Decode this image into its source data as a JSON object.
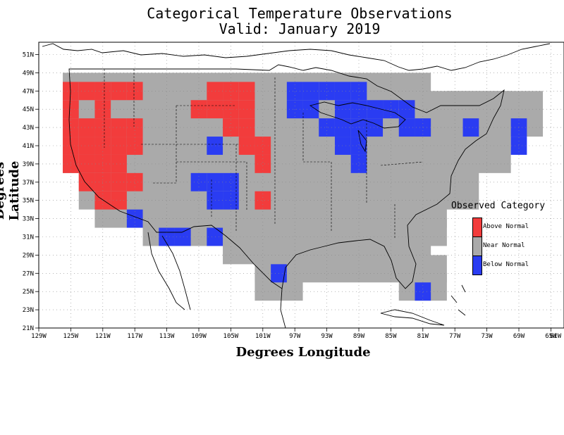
{
  "title": "Categorical Temperature Observations",
  "subtitle": "Valid: January 2019",
  "axes": {
    "ylabel": "Degrees Latitude",
    "xlabel": "Degrees Longitude",
    "lat_ticks": [
      "51N",
      "49N",
      "47N",
      "45N",
      "43N",
      "41N",
      "39N",
      "37N",
      "35N",
      "33N",
      "31N",
      "29N",
      "27N",
      "25N",
      "23N",
      "21N"
    ],
    "lon_ticks": [
      "129W",
      "125W",
      "121W",
      "117W",
      "113W",
      "109W",
      "105W",
      "101W",
      "97W",
      "93W",
      "89W",
      "85W",
      "81W",
      "77W",
      "73W",
      "69W",
      "65W",
      "61W"
    ]
  },
  "legend": {
    "title": "Observed Category",
    "items": [
      {
        "label": "Above Normal",
        "color": "#f23c3c"
      },
      {
        "label": "Near Normal",
        "color": "#aaaaaa"
      },
      {
        "label": "Below Normal",
        "color": "#2a3cf2"
      }
    ]
  },
  "chart_data": {
    "type": "heatmap",
    "title": "Categorical Temperature Observations",
    "subtitle": "Valid: January 2019",
    "xlabel": "Degrees Longitude",
    "ylabel": "Degrees Latitude",
    "xlim": [
      -129,
      -61
    ],
    "ylim": [
      21,
      52
    ],
    "grid": true,
    "legend_position": "right",
    "categories": [
      "Above Normal",
      "Near Normal",
      "Below Normal"
    ],
    "cell_size_deg": 2,
    "cells": {
      "above": [
        [
          -125,
          47
        ],
        [
          -123,
          47
        ],
        [
          -121,
          47
        ],
        [
          -119,
          47
        ],
        [
          -117,
          47
        ],
        [
          -107,
          47
        ],
        [
          -105,
          47
        ],
        [
          -103,
          47
        ],
        [
          -125,
          45
        ],
        [
          -121,
          45
        ],
        [
          -109,
          45
        ],
        [
          -107,
          45
        ],
        [
          -105,
          45
        ],
        [
          -103,
          45
        ],
        [
          -125,
          43
        ],
        [
          -123,
          43
        ],
        [
          -121,
          43
        ],
        [
          -119,
          43
        ],
        [
          -117,
          43
        ],
        [
          -105,
          43
        ],
        [
          -103,
          43
        ],
        [
          -125,
          41
        ],
        [
          -123,
          41
        ],
        [
          -121,
          41
        ],
        [
          -119,
          41
        ],
        [
          -117,
          41
        ],
        [
          -103,
          41
        ],
        [
          -101,
          41
        ],
        [
          -125,
          39
        ],
        [
          -123,
          39
        ],
        [
          -121,
          39
        ],
        [
          -119,
          39
        ],
        [
          -101,
          39
        ],
        [
          -123,
          37
        ],
        [
          -121,
          37
        ],
        [
          -119,
          37
        ],
        [
          -117,
          37
        ],
        [
          -121,
          35
        ],
        [
          -119,
          35
        ],
        [
          -101,
          35
        ]
      ],
      "below": [
        [
          -97,
          47
        ],
        [
          -95,
          47
        ],
        [
          -93,
          47
        ],
        [
          -91,
          47
        ],
        [
          -89,
          47
        ],
        [
          -97,
          45
        ],
        [
          -95,
          45
        ],
        [
          -91,
          45
        ],
        [
          -89,
          45
        ],
        [
          -87,
          45
        ],
        [
          -85,
          45
        ],
        [
          -83,
          45
        ],
        [
          -93,
          43
        ],
        [
          -91,
          43
        ],
        [
          -89,
          43
        ],
        [
          -87,
          43
        ],
        [
          -83,
          43
        ],
        [
          -81,
          43
        ],
        [
          -75,
          43
        ],
        [
          -69,
          43
        ],
        [
          -107,
          41
        ],
        [
          -91,
          41
        ],
        [
          -89,
          41
        ],
        [
          -69,
          41
        ],
        [
          -89,
          39
        ],
        [
          -109,
          37
        ],
        [
          -107,
          37
        ],
        [
          -105,
          37
        ],
        [
          -107,
          35
        ],
        [
          -105,
          35
        ],
        [
          -117,
          33
        ],
        [
          -113,
          31
        ],
        [
          -111,
          31
        ],
        [
          -107,
          31
        ],
        [
          -99,
          27
        ],
        [
          -81,
          25
        ]
      ],
      "near_normal_region": "all other land cells within the contiguous United States"
    }
  }
}
